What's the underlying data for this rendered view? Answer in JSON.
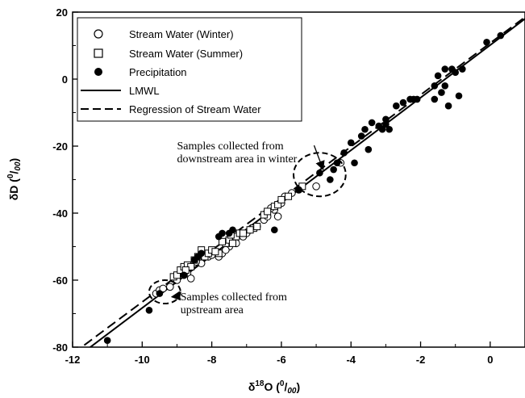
{
  "chart_data": {
    "type": "scatter",
    "xlabel": "δ18O (0/00)",
    "ylabel": "δD (0/00)",
    "xlabel_parts": {
      "delta": "δ",
      "sup": "18",
      "main": "O",
      "unit_open": " (",
      "unit_sup": "0",
      "unit_slash": "/",
      "unit_sub": "00",
      "unit_close": ")"
    },
    "ylabel_parts": {
      "main": "δD",
      "unit_open": " (",
      "unit_sup": "0",
      "unit_slash": "/",
      "unit_sub": "00",
      "unit_close": ")"
    },
    "xlim": [
      -12,
      1
    ],
    "ylim": [
      -80,
      20
    ],
    "x_ticks": [
      -12,
      -10,
      -8,
      -6,
      -4,
      -2,
      0
    ],
    "y_ticks": [
      -80,
      -60,
      -40,
      -20,
      0,
      20
    ],
    "x_tick_labels": [
      "-12",
      "-10",
      "-8",
      "-6",
      "-4",
      "-2",
      "0"
    ],
    "y_tick_labels": [
      "-80",
      "-60",
      "-40",
      "-20",
      "0",
      "20"
    ],
    "grid": false,
    "legend_position": "top-left",
    "series": [
      {
        "name": "Stream Water (Winter)",
        "marker": "open-circle",
        "points": [
          [
            -9.6,
            -64
          ],
          [
            -9.5,
            -63
          ],
          [
            -9.4,
            -62.5
          ],
          [
            -9.2,
            -62
          ],
          [
            -9.0,
            -60
          ],
          [
            -8.7,
            -58
          ],
          [
            -8.6,
            -59.5
          ],
          [
            -8.5,
            -55
          ],
          [
            -8.3,
            -55
          ],
          [
            -8.1,
            -53
          ],
          [
            -8.0,
            -52.5
          ],
          [
            -7.8,
            -53
          ],
          [
            -7.7,
            -52
          ],
          [
            -7.5,
            -50
          ],
          [
            -7.3,
            -49
          ],
          [
            -7.1,
            -47
          ],
          [
            -7.0,
            -46
          ],
          [
            -6.9,
            -45
          ],
          [
            -6.7,
            -44
          ],
          [
            -6.5,
            -42
          ],
          [
            -6.4,
            -41
          ],
          [
            -6.2,
            -39
          ],
          [
            -6.0,
            -37
          ],
          [
            -5.9,
            -35
          ],
          [
            -5.7,
            -34
          ],
          [
            -5.5,
            -33
          ],
          [
            -5.0,
            -32
          ],
          [
            -4.3,
            -25
          ],
          [
            -6.1,
            -41
          ],
          [
            -7.6,
            -51
          ],
          [
            -8.8,
            -58.5
          ],
          [
            -8.45,
            -54.5
          ],
          [
            -6.85,
            -44.5
          ],
          [
            -6.3,
            -38.5
          ]
        ]
      },
      {
        "name": "Stream Water (Summer)",
        "marker": "open-square",
        "points": [
          [
            -9.1,
            -59
          ],
          [
            -9.0,
            -58.5
          ],
          [
            -8.9,
            -57
          ],
          [
            -8.8,
            -56
          ],
          [
            -8.7,
            -55.5
          ],
          [
            -8.6,
            -56
          ],
          [
            -8.5,
            -54
          ],
          [
            -8.4,
            -53
          ],
          [
            -8.2,
            -53
          ],
          [
            -8.1,
            -52
          ],
          [
            -8.0,
            -51
          ],
          [
            -7.8,
            -52
          ],
          [
            -7.6,
            -49
          ],
          [
            -7.5,
            -48
          ],
          [
            -7.4,
            -49
          ],
          [
            -7.3,
            -47
          ],
          [
            -7.2,
            -46
          ],
          [
            -7.1,
            -46
          ],
          [
            -6.8,
            -44.5
          ],
          [
            -6.7,
            -44
          ],
          [
            -6.5,
            -40.5
          ],
          [
            -6.4,
            -39.5
          ],
          [
            -6.2,
            -38
          ],
          [
            -6.1,
            -37.5
          ],
          [
            -6.0,
            -36
          ],
          [
            -5.8,
            -35
          ],
          [
            -5.4,
            -32
          ],
          [
            -7.7,
            -48.5
          ],
          [
            -8.3,
            -51
          ],
          [
            -7.9,
            -51.5
          ],
          [
            -6.9,
            -45
          ],
          [
            -7.45,
            -46.5
          ],
          [
            -8.75,
            -57
          ]
        ]
      },
      {
        "name": "Precipitation",
        "marker": "filled-circle",
        "points": [
          [
            -11.0,
            -78
          ],
          [
            -9.8,
            -69
          ],
          [
            -9.5,
            -64
          ],
          [
            -8.8,
            -58.5
          ],
          [
            -8.5,
            -54
          ],
          [
            -8.4,
            -53
          ],
          [
            -8.3,
            -52
          ],
          [
            -7.8,
            -47
          ],
          [
            -7.7,
            -46
          ],
          [
            -7.5,
            -46
          ],
          [
            -7.4,
            -45
          ],
          [
            -6.2,
            -45
          ],
          [
            -5.5,
            -33
          ],
          [
            -4.9,
            -28
          ],
          [
            -4.6,
            -30
          ],
          [
            -4.5,
            -27
          ],
          [
            -4.4,
            -25
          ],
          [
            -4.2,
            -22
          ],
          [
            -4.0,
            -19
          ],
          [
            -3.9,
            -25
          ],
          [
            -3.7,
            -17
          ],
          [
            -3.6,
            -15
          ],
          [
            -3.5,
            -21
          ],
          [
            -3.4,
            -13
          ],
          [
            -3.2,
            -14
          ],
          [
            -3.1,
            -15
          ],
          [
            -3.0,
            -12
          ],
          [
            -3.0,
            -13.5
          ],
          [
            -2.9,
            -15
          ],
          [
            -2.7,
            -8
          ],
          [
            -2.5,
            -7
          ],
          [
            -2.3,
            -6
          ],
          [
            -2.2,
            -6
          ],
          [
            -2.1,
            -6
          ],
          [
            -1.6,
            -2
          ],
          [
            -1.6,
            -6
          ],
          [
            -1.5,
            1
          ],
          [
            -1.4,
            -4
          ],
          [
            -1.3,
            -2
          ],
          [
            -1.3,
            3
          ],
          [
            -1.2,
            -8
          ],
          [
            -1.1,
            3
          ],
          [
            -1.0,
            2
          ],
          [
            -0.9,
            -5
          ],
          [
            -0.8,
            3
          ],
          [
            -0.1,
            11
          ],
          [
            0.3,
            13
          ]
        ]
      }
    ],
    "lines": [
      {
        "name": "LMWL",
        "style": "solid",
        "x": [
          -12,
          1
        ],
        "y": [
          -84,
          18
        ]
      },
      {
        "name": "Regression of Stream Water",
        "style": "dashed",
        "x": [
          -12,
          1
        ],
        "y": [
          -82,
          18.5
        ]
      }
    ],
    "ellipses": [
      {
        "cx": -9.35,
        "cy": -63.5,
        "rx": 0.45,
        "ry": 3.5
      },
      {
        "cx": -4.9,
        "cy": -28.5,
        "rx": 0.75,
        "ry": 6.5
      }
    ],
    "annotations": [
      {
        "lines": [
          "Samples collected from",
          "downstream area in winter"
        ],
        "x": -9.0,
        "y": -21.0,
        "arrow_to": [
          -4.8,
          -27
        ]
      },
      {
        "lines": [
          "Samples collected from",
          "upstream area"
        ],
        "x": -8.9,
        "y": -66.0,
        "arrow_to": [
          -9.15,
          -65
        ]
      }
    ]
  },
  "legend": {
    "items": [
      {
        "label": "Stream Water (Winter)",
        "marker": "open-circle"
      },
      {
        "label": "Stream Water (Summer)",
        "marker": "open-square"
      },
      {
        "label": "Precipitation",
        "marker": "filled-circle"
      },
      {
        "label": "LMWL",
        "marker": "solid-line"
      },
      {
        "label": "Regression of Stream Water",
        "marker": "dashed-line"
      }
    ]
  }
}
